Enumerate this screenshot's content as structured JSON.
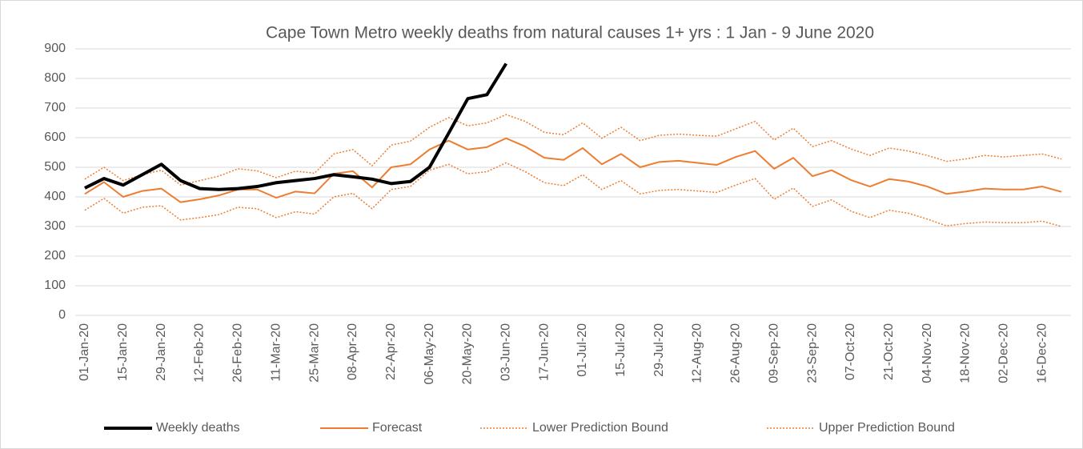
{
  "chart_data": {
    "type": "line",
    "title": "Cape Town Metro weekly deaths from natural causes 1+ yrs : 1 Jan - 9 June 2020",
    "categories": [
      "01-Jan-20",
      null,
      "15-Jan-20",
      null,
      "29-Jan-20",
      null,
      "12-Feb-20",
      null,
      "26-Feb-20",
      null,
      "11-Mar-20",
      null,
      "25-Mar-20",
      null,
      "08-Apr-20",
      null,
      "22-Apr-20",
      null,
      "06-May-20",
      null,
      "20-May-20",
      null,
      "03-Jun-20",
      null,
      "17-Jun-20",
      null,
      "01-Jul-20",
      null,
      "15-Jul-20",
      null,
      "29-Jul-20",
      null,
      "12-Aug-20",
      null,
      "26-Aug-20",
      null,
      "09-Sep-20",
      null,
      "23-Sep-20",
      null,
      "07-Oct-20",
      null,
      "21-Oct-20",
      null,
      "04-Nov-20",
      null,
      "18-Nov-20",
      null,
      "02-Dec-20",
      null,
      "16-Dec-20",
      null
    ],
    "series": [
      {
        "name": "Weekly deaths",
        "color": "#000000",
        "style": "solid",
        "line_width": 4,
        "values": [
          430,
          462,
          440,
          475,
          510,
          455,
          428,
          425,
          428,
          435,
          448,
          455,
          462,
          475,
          468,
          460,
          445,
          452,
          500,
          615,
          732,
          745,
          850,
          null,
          null,
          null,
          null,
          null,
          null,
          null,
          null,
          null,
          null,
          null,
          null,
          null,
          null,
          null,
          null,
          null,
          null,
          null,
          null,
          null,
          null,
          null,
          null,
          null,
          null,
          null,
          null,
          null
        ]
      },
      {
        "name": "Forecast",
        "color": "#ed7d31",
        "style": "solid",
        "line_width": 2,
        "values": [
          410,
          450,
          400,
          420,
          428,
          382,
          392,
          405,
          425,
          425,
          397,
          418,
          412,
          478,
          487,
          432,
          500,
          510,
          560,
          590,
          560,
          568,
          598,
          570,
          532,
          525,
          565,
          510,
          545,
          500,
          518,
          522,
          515,
          508,
          535,
          555,
          495,
          532,
          470,
          490,
          457,
          435,
          460,
          452,
          435,
          410,
          418,
          428,
          425,
          425,
          435,
          417
        ]
      },
      {
        "name": "Lower Prediction Bound",
        "color": "#ed7d31",
        "style": "dotted",
        "line_width": 1.5,
        "values": [
          355,
          395,
          345,
          365,
          370,
          322,
          330,
          340,
          365,
          360,
          330,
          350,
          342,
          400,
          412,
          360,
          425,
          435,
          490,
          510,
          478,
          485,
          515,
          485,
          448,
          438,
          475,
          425,
          455,
          410,
          422,
          425,
          420,
          415,
          440,
          462,
          392,
          430,
          368,
          390,
          352,
          330,
          355,
          345,
          325,
          302,
          310,
          315,
          313,
          313,
          318,
          300
        ]
      },
      {
        "name": "Upper Prediction Bound",
        "color": "#ed7d31",
        "style": "dotted",
        "line_width": 1.5,
        "values": [
          460,
          500,
          455,
          475,
          490,
          440,
          455,
          470,
          495,
          488,
          465,
          487,
          480,
          545,
          560,
          505,
          575,
          588,
          635,
          668,
          640,
          650,
          678,
          655,
          618,
          610,
          650,
          598,
          635,
          590,
          608,
          612,
          608,
          605,
          630,
          655,
          592,
          632,
          570,
          590,
          562,
          540,
          565,
          555,
          540,
          520,
          528,
          540,
          535,
          540,
          545,
          528
        ]
      }
    ],
    "ylim": [
      0,
      900
    ],
    "yticks": [
      0,
      100,
      200,
      300,
      400,
      500,
      600,
      700,
      800,
      900
    ],
    "grid": true,
    "legend": "bottom"
  }
}
